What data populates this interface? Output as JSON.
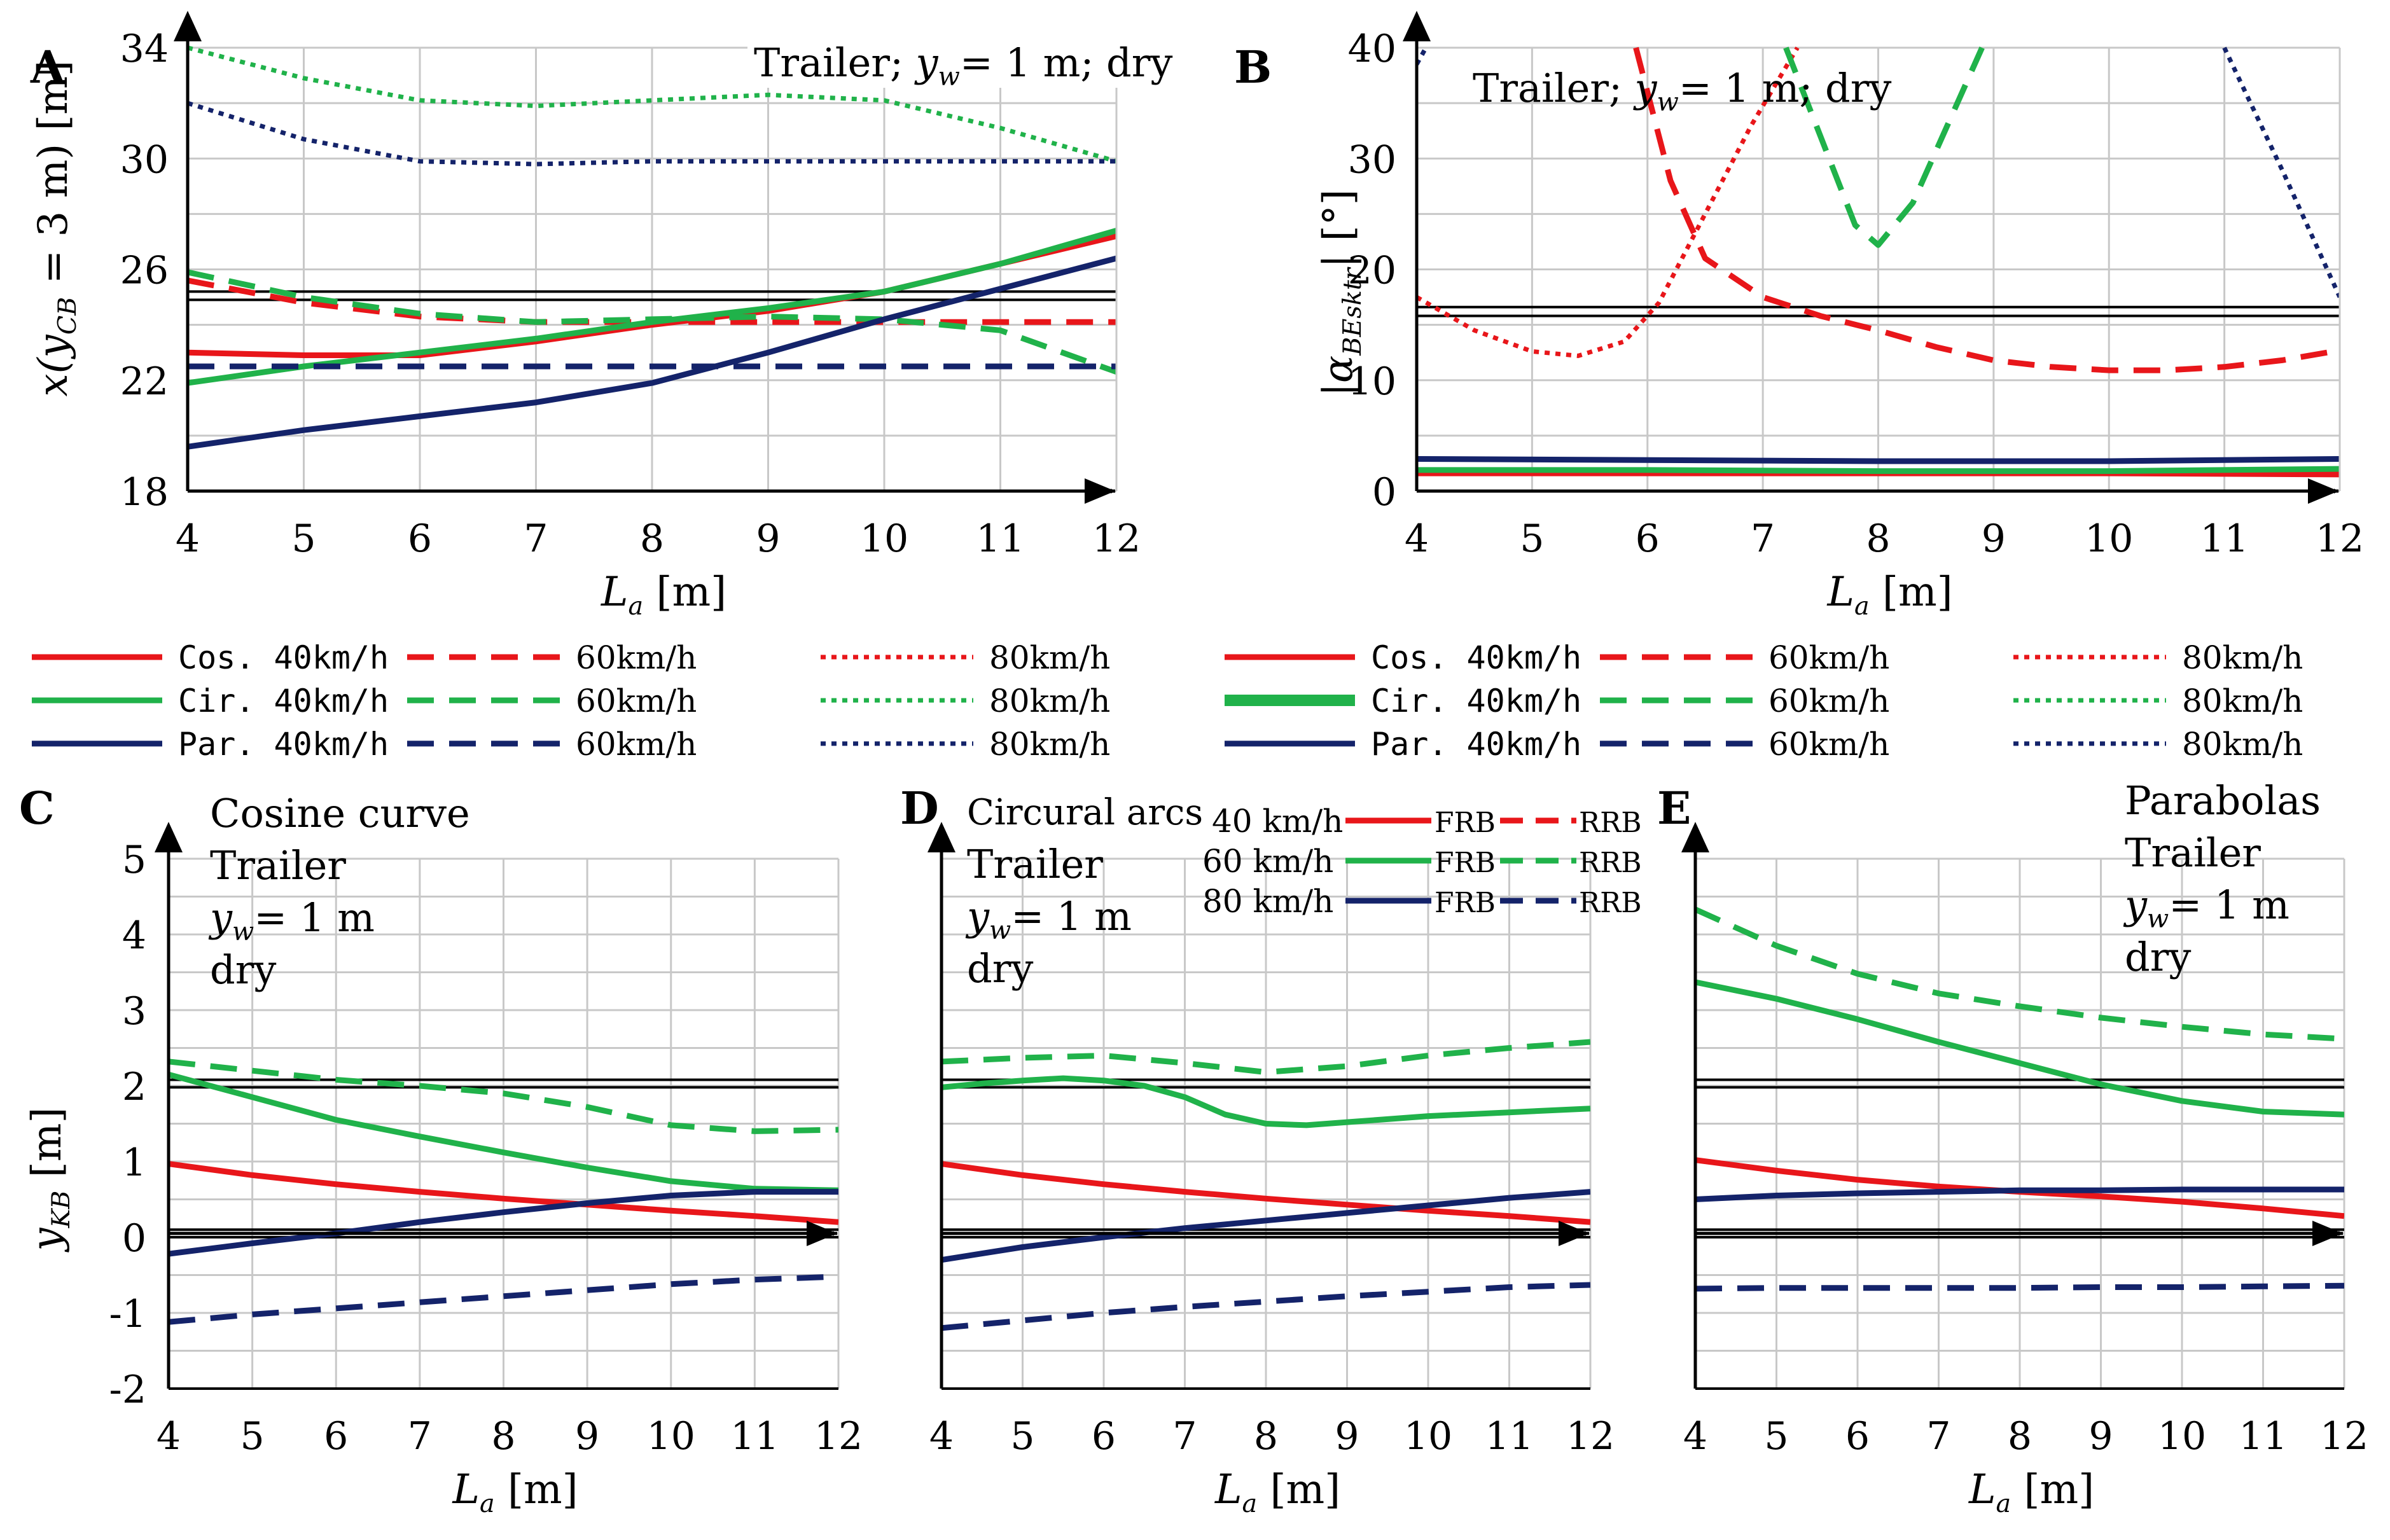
{
  "colors": {
    "red": "#e8161a",
    "green": "#20b24a",
    "navy": "#14236a",
    "grid": "#c8c8c8"
  },
  "legend_top": {
    "rows": [
      {
        "name": "Cos. 40km/h",
        "color": "#e8161a",
        "dash2": "60km/h",
        "dash3": "80km/h"
      },
      {
        "name": "Cir. 40km/h",
        "color": "#20b24a",
        "dash2": "60km/h",
        "dash3": "80km/h"
      },
      {
        "name": "Par. 40km/h",
        "color": "#14236a",
        "dash2": "60km/h",
        "dash3": "80km/h"
      }
    ]
  },
  "legend_D": {
    "rows": [
      {
        "speed": "40 km/h",
        "color": "#e8161a",
        "frb": "FRB",
        "rrb": "RRB"
      },
      {
        "speed": "60 km/h",
        "color": "#20b24a",
        "frb": "FRB",
        "rrb": "RRB"
      },
      {
        "speed": "80 km/h",
        "color": "#14236a",
        "frb": "FRB",
        "rrb": "RRB"
      }
    ]
  },
  "chart_data": [
    {
      "panel": "A",
      "type": "line",
      "annotation": [
        "Trailer; ",
        "y",
        "w",
        "= 1 m;  dry"
      ],
      "xlabel": [
        "L",
        "a",
        " [m]"
      ],
      "ylabel": [
        "x(y",
        "CB",
        " = 3 m) [m]"
      ],
      "xlim": [
        4,
        12
      ],
      "ylim": [
        18,
        34
      ],
      "xticks": [
        4,
        5,
        6,
        7,
        8,
        9,
        10,
        11,
        12
      ],
      "yticks": [
        18,
        22,
        26,
        30,
        34
      ],
      "xtick_labels": [
        "4",
        "5",
        "6",
        "7",
        "8",
        "9",
        "10",
        "11",
        "12"
      ],
      "ytick_labels": [
        "18",
        "22",
        "26",
        "30",
        "34"
      ],
      "grid": true,
      "hlines": [
        24.9,
        25.2
      ],
      "series": [
        {
          "name": "Cos. 40km/h",
          "color": "#e8161a",
          "style": "solid",
          "x": [
            4,
            5,
            6,
            7,
            8,
            9,
            10,
            11,
            12
          ],
          "y": [
            23.0,
            22.9,
            22.9,
            23.4,
            24.0,
            24.5,
            25.2,
            26.2,
            27.2
          ]
        },
        {
          "name": "Cos. 60km/h",
          "color": "#e8161a",
          "style": "dashed",
          "x": [
            4,
            5,
            6,
            7,
            8,
            9,
            10,
            11,
            12
          ],
          "y": [
            25.6,
            24.8,
            24.3,
            24.1,
            24.1,
            24.1,
            24.1,
            24.1,
            24.1
          ]
        },
        {
          "name": "Cir. 40km/h",
          "color": "#20b24a",
          "style": "solid",
          "x": [
            4,
            5,
            6,
            7,
            8,
            9,
            10,
            11,
            12
          ],
          "y": [
            21.9,
            22.5,
            23.0,
            23.5,
            24.1,
            24.6,
            25.2,
            26.2,
            27.4
          ]
        },
        {
          "name": "Cir. 60km/h",
          "color": "#20b24a",
          "style": "dashed",
          "x": [
            4,
            5,
            6,
            7,
            8,
            9,
            10,
            11,
            12
          ],
          "y": [
            25.9,
            25.0,
            24.4,
            24.1,
            24.2,
            24.3,
            24.2,
            23.8,
            22.3
          ]
        },
        {
          "name": "Cir. 80km/h",
          "color": "#20b24a",
          "style": "dotted",
          "x": [
            4,
            5,
            6,
            7,
            8,
            9,
            10,
            11,
            12
          ],
          "y": [
            34.0,
            32.9,
            32.1,
            31.9,
            32.1,
            32.3,
            32.1,
            31.1,
            29.9
          ]
        },
        {
          "name": "Par. 40km/h",
          "color": "#14236a",
          "style": "solid",
          "x": [
            4,
            5,
            6,
            7,
            8,
            9,
            10,
            11,
            12
          ],
          "y": [
            19.6,
            20.2,
            20.7,
            21.2,
            21.9,
            23.0,
            24.2,
            25.3,
            26.4
          ]
        },
        {
          "name": "Par. 60km/h",
          "color": "#14236a",
          "style": "dashed",
          "x": [
            4,
            5,
            6,
            7,
            8,
            9,
            10,
            11,
            12
          ],
          "y": [
            22.5,
            22.5,
            22.5,
            22.5,
            22.5,
            22.5,
            22.5,
            22.5,
            22.5
          ]
        },
        {
          "name": "Par. 80km/h",
          "color": "#14236a",
          "style": "dotted",
          "x": [
            4,
            5,
            6,
            7,
            8,
            9,
            10,
            11,
            12
          ],
          "y": [
            32.0,
            30.7,
            29.9,
            29.8,
            29.9,
            29.9,
            29.9,
            29.9,
            29.9
          ]
        }
      ]
    },
    {
      "panel": "B",
      "type": "line",
      "annotation": [
        "Trailer; ",
        "y",
        "w",
        "= 1 m; dry"
      ],
      "xlabel": [
        "L",
        "a",
        " [m]"
      ],
      "ylabel": [
        "|α",
        "BEsktr",
        "| [°]"
      ],
      "xlim": [
        4,
        12
      ],
      "ylim": [
        0,
        40
      ],
      "xticks": [
        4,
        5,
        6,
        7,
        8,
        9,
        10,
        11,
        12
      ],
      "yticks": [
        0,
        10,
        20,
        30,
        40
      ],
      "xtick_labels": [
        "4",
        "5",
        "6",
        "7",
        "8",
        "9",
        "10",
        "11",
        "12"
      ],
      "ytick_labels": [
        "0",
        "10",
        "20",
        "30",
        "40"
      ],
      "grid": true,
      "hlines": [
        15.8,
        16.6
      ],
      "series": [
        {
          "name": "Cos. 40km/h",
          "color": "#e8161a",
          "style": "solid",
          "x": [
            4,
            6,
            8,
            10,
            12
          ],
          "y": [
            1.6,
            1.6,
            1.6,
            1.6,
            1.5
          ]
        },
        {
          "name": "Cos. 60km/h",
          "color": "#e8161a",
          "style": "dashed",
          "x": [
            5.9,
            6.2,
            6.5,
            7,
            7.5,
            8,
            8.5,
            9,
            9.5,
            10,
            10.5,
            11,
            11.5,
            12
          ],
          "y": [
            40,
            28,
            21,
            17.5,
            15.8,
            14.5,
            13.0,
            11.8,
            11.2,
            10.9,
            10.9,
            11.2,
            11.8,
            12.7
          ]
        },
        {
          "name": "Cos. 80km/h",
          "color": "#e8161a",
          "style": "dotted",
          "x": [
            4,
            4.5,
            5,
            5.4,
            5.8,
            6.1,
            6.5,
            6.9,
            7.3
          ],
          "y": [
            17.5,
            14.5,
            12.6,
            12.2,
            13.5,
            17,
            25,
            33,
            40
          ]
        },
        {
          "name": "Cir. 40km/h",
          "color": "#20b24a",
          "style": "solid",
          "x": [
            4,
            6,
            8,
            10,
            12
          ],
          "y": [
            1.9,
            1.9,
            1.8,
            1.8,
            2.0
          ]
        },
        {
          "name": "Cir. 60km/h",
          "color": "#20b24a",
          "style": "dashed",
          "x": [
            7.2,
            7.5,
            7.8,
            8.0,
            8.3,
            8.6,
            8.9
          ],
          "y": [
            40,
            32,
            24,
            22.2,
            26,
            33,
            40
          ]
        },
        {
          "name": "Par. 40km/h",
          "color": "#14236a",
          "style": "solid",
          "x": [
            4,
            6,
            8,
            10,
            12
          ],
          "y": [
            2.9,
            2.8,
            2.7,
            2.7,
            2.9
          ]
        },
        {
          "name": "Par. 80km/h",
          "color": "#14236a",
          "style": "dotted",
          "x": [
            4.0,
            4.08
          ],
          "y": [
            38.5,
            40
          ]
        },
        {
          "name": "Par. 80km/h (right)",
          "color": "#14236a",
          "style": "dotted",
          "x": [
            11.0,
            11.5,
            12
          ],
          "y": [
            40,
            29,
            17.5
          ]
        }
      ]
    },
    {
      "panel": "C",
      "type": "line",
      "annotation": [
        "Cosine curve",
        "Trailer",
        "y",
        "w",
        "= 1 m",
        "dry"
      ],
      "xlabel": [
        "L",
        "a",
        " [m]"
      ],
      "ylabel": [
        "y",
        "KB",
        " [m]"
      ],
      "xlim": [
        4,
        12
      ],
      "ylim": [
        -2,
        5
      ],
      "xticks": [
        4,
        5,
        6,
        7,
        8,
        9,
        10,
        11,
        12
      ],
      "yticks": [
        -2,
        -1,
        0,
        1,
        2,
        3,
        4,
        5
      ],
      "xtick_labels": [
        "4",
        "5",
        "6",
        "7",
        "8",
        "9",
        "10",
        "11",
        "12"
      ],
      "ytick_labels": [
        "-2",
        "-1",
        "0",
        "1",
        "2",
        "3",
        "4",
        "5"
      ],
      "grid": true,
      "hlines": [
        0.0,
        0.1,
        1.98,
        2.08
      ],
      "series": [
        {
          "name": "40 km/h FRB",
          "color": "#e8161a",
          "style": "solid",
          "x": [
            4,
            5,
            6,
            7,
            8,
            9,
            10,
            11,
            12
          ],
          "y": [
            0.97,
            0.82,
            0.7,
            0.6,
            0.51,
            0.43,
            0.35,
            0.28,
            0.2
          ]
        },
        {
          "name": "60 km/h FRB",
          "color": "#20b24a",
          "style": "solid",
          "x": [
            4,
            5,
            6,
            7,
            8,
            9,
            10,
            11,
            12
          ],
          "y": [
            2.15,
            1.85,
            1.55,
            1.33,
            1.12,
            0.92,
            0.74,
            0.64,
            0.62
          ]
        },
        {
          "name": "60 km/h RRB",
          "color": "#20b24a",
          "style": "dashed",
          "x": [
            4,
            5,
            6,
            7,
            8,
            9,
            10,
            11,
            12
          ],
          "y": [
            2.32,
            2.2,
            2.08,
            2.0,
            1.9,
            1.72,
            1.48,
            1.4,
            1.42
          ]
        },
        {
          "name": "80 km/h FRB",
          "color": "#14236a",
          "style": "solid",
          "x": [
            4,
            5,
            6,
            7,
            8,
            9,
            10,
            11,
            12
          ],
          "y": [
            -0.22,
            -0.08,
            0.05,
            0.2,
            0.33,
            0.45,
            0.55,
            0.6,
            0.6
          ]
        },
        {
          "name": "80 km/h RRB",
          "color": "#14236a",
          "style": "dashed",
          "x": [
            4,
            5,
            6,
            7,
            8,
            9,
            10,
            11,
            12
          ],
          "y": [
            -1.12,
            -1.02,
            -0.94,
            -0.86,
            -0.78,
            -0.7,
            -0.62,
            -0.56,
            -0.52
          ]
        }
      ]
    },
    {
      "panel": "D",
      "type": "line",
      "annotation": [
        "Circural arcs",
        "Trailer",
        "y",
        "w",
        "= 1 m",
        "dry"
      ],
      "xlabel": [
        "L",
        "a",
        " [m]"
      ],
      "ylabel": [],
      "xlim": [
        4,
        12
      ],
      "ylim": [
        -2,
        5
      ],
      "xticks": [
        4,
        5,
        6,
        7,
        8,
        9,
        10,
        11,
        12
      ],
      "yticks": [
        -2,
        -1,
        0,
        1,
        2,
        3,
        4,
        5
      ],
      "xtick_labels": [
        "4",
        "5",
        "6",
        "7",
        "8",
        "9",
        "10",
        "11",
        "12"
      ],
      "ytick_labels": [],
      "grid": true,
      "hlines": [
        0.0,
        0.1,
        1.98,
        2.08
      ],
      "series": [
        {
          "name": "40 km/h FRB",
          "color": "#e8161a",
          "style": "solid",
          "x": [
            4,
            5,
            6,
            7,
            8,
            9,
            10,
            11,
            12
          ],
          "y": [
            0.97,
            0.82,
            0.7,
            0.6,
            0.51,
            0.43,
            0.35,
            0.28,
            0.2
          ]
        },
        {
          "name": "60 km/h FRB",
          "color": "#20b24a",
          "style": "solid",
          "x": [
            4,
            4.5,
            5,
            5.5,
            6,
            6.5,
            7,
            7.5,
            8,
            8.5,
            9,
            9.5,
            10,
            11,
            12
          ],
          "y": [
            1.98,
            2.03,
            2.07,
            2.1,
            2.07,
            2.0,
            1.85,
            1.62,
            1.5,
            1.48,
            1.52,
            1.56,
            1.6,
            1.65,
            1.7
          ]
        },
        {
          "name": "60 km/h RRB",
          "color": "#20b24a",
          "style": "dashed",
          "x": [
            4,
            5,
            6,
            7,
            8,
            9,
            10,
            11,
            12
          ],
          "y": [
            2.32,
            2.37,
            2.4,
            2.3,
            2.18,
            2.26,
            2.4,
            2.5,
            2.58
          ]
        },
        {
          "name": "80 km/h FRB",
          "color": "#14236a",
          "style": "solid",
          "x": [
            4,
            5,
            6,
            7,
            8,
            9,
            10,
            11,
            12
          ],
          "y": [
            -0.3,
            -0.13,
            0.0,
            0.12,
            0.22,
            0.32,
            0.42,
            0.52,
            0.6
          ]
        },
        {
          "name": "80 km/h RRB",
          "color": "#14236a",
          "style": "dashed",
          "x": [
            4,
            5,
            6,
            7,
            8,
            9,
            10,
            11,
            12
          ],
          "y": [
            -1.2,
            -1.1,
            -1.0,
            -0.92,
            -0.85,
            -0.78,
            -0.72,
            -0.66,
            -0.63
          ]
        }
      ]
    },
    {
      "panel": "E",
      "type": "line",
      "annotation": [
        "Parabolas",
        "Trailer",
        "y",
        "w",
        "= 1 m",
        "dry"
      ],
      "xlabel": [
        "L",
        "a",
        " [m]"
      ],
      "ylabel": [],
      "xlim": [
        4,
        12
      ],
      "ylim": [
        -2,
        5
      ],
      "xticks": [
        4,
        5,
        6,
        7,
        8,
        9,
        10,
        11,
        12
      ],
      "yticks": [
        -2,
        -1,
        0,
        1,
        2,
        3,
        4,
        5
      ],
      "xtick_labels": [
        "4",
        "5",
        "6",
        "7",
        "8",
        "9",
        "10",
        "11",
        "12"
      ],
      "ytick_labels": [],
      "grid": true,
      "hlines": [
        0.0,
        0.1,
        1.98,
        2.08
      ],
      "series": [
        {
          "name": "40 km/h FRB",
          "color": "#e8161a",
          "style": "solid",
          "x": [
            4,
            5,
            6,
            7,
            8,
            9,
            10,
            11,
            12
          ],
          "y": [
            1.02,
            0.88,
            0.76,
            0.67,
            0.6,
            0.54,
            0.47,
            0.38,
            0.28
          ]
        },
        {
          "name": "60 km/h FRB",
          "color": "#20b24a",
          "style": "solid",
          "x": [
            4,
            5,
            6,
            7,
            8,
            9,
            10,
            11,
            12
          ],
          "y": [
            3.37,
            3.15,
            2.88,
            2.58,
            2.3,
            2.02,
            1.8,
            1.66,
            1.62
          ]
        },
        {
          "name": "60 km/h RRB",
          "color": "#20b24a",
          "style": "dashed",
          "x": [
            4,
            5,
            6,
            7,
            8,
            9,
            10,
            11,
            12
          ],
          "y": [
            4.33,
            3.85,
            3.48,
            3.22,
            3.05,
            2.9,
            2.78,
            2.68,
            2.62
          ]
        },
        {
          "name": "80 km/h FRB",
          "color": "#14236a",
          "style": "solid",
          "x": [
            4,
            5,
            6,
            7,
            8,
            9,
            10,
            11,
            12
          ],
          "y": [
            0.5,
            0.55,
            0.58,
            0.6,
            0.62,
            0.62,
            0.63,
            0.63,
            0.63
          ]
        },
        {
          "name": "80 km/h RRB",
          "color": "#14236a",
          "style": "dashed",
          "x": [
            4,
            5,
            6,
            7,
            8,
            9,
            10,
            11,
            12
          ],
          "y": [
            -0.68,
            -0.67,
            -0.67,
            -0.67,
            -0.67,
            -0.66,
            -0.66,
            -0.65,
            -0.64
          ]
        }
      ]
    }
  ]
}
